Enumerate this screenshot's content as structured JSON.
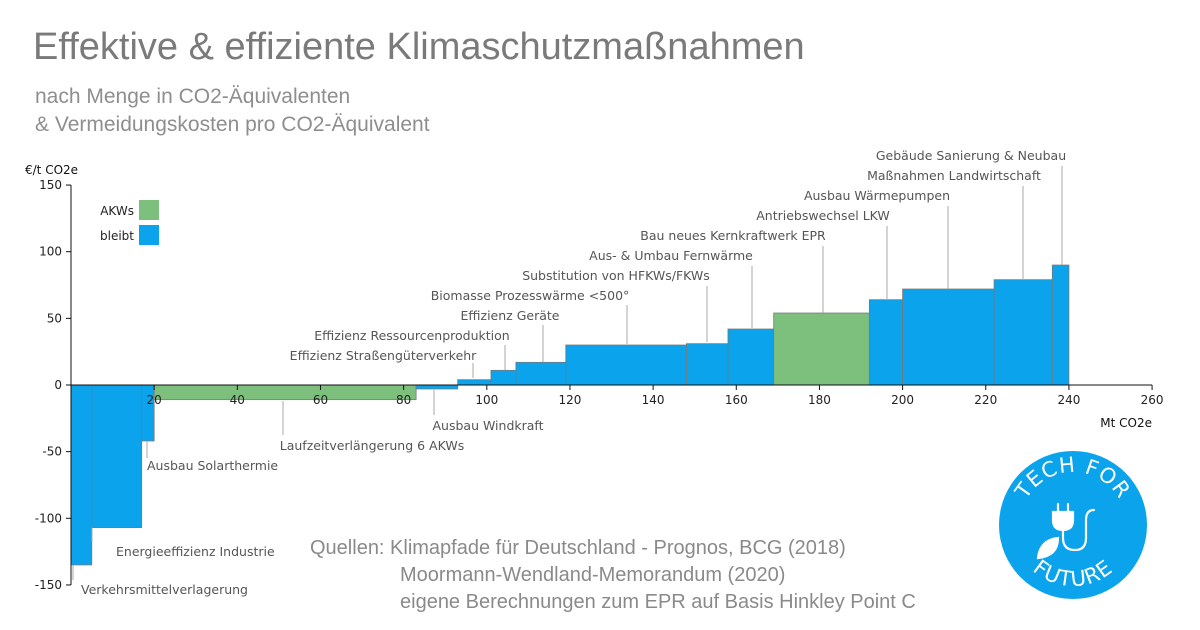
{
  "title": "Effektive & effiziente Klimaschutzmaßnahmen",
  "subtitle": [
    "nach Menge in CO2-Äquivalenten",
    "& Vermeidungskosten pro CO2-Äquivalent"
  ],
  "sources": [
    "Quellen: Klimapfade für Deutschland - Prognos, BCG (2018)",
    "Moormann-Wendland-Memorandum (2020)",
    "eigene Berechnungen zum EPR auf Basis Hinkley Point C"
  ],
  "logo": {
    "top_text": "TECH FOR",
    "bottom_text": "FUTURE",
    "icon": "plug-leaf-icon",
    "color": "#0aa3ec"
  },
  "colors": {
    "akw": "#7dc07e",
    "bleibt": "#0aa3ec",
    "bar_stroke": "#7a7a7a"
  },
  "chart_data": {
    "type": "bar",
    "variant": "marginal-abatement-cost-curve",
    "ylabel": "€/t CO2e",
    "xlabel": "Mt CO2e",
    "xlim": [
      0,
      260
    ],
    "ylim": [
      -150,
      150
    ],
    "x_ticks": [
      20,
      40,
      60,
      80,
      100,
      120,
      140,
      160,
      180,
      200,
      220,
      240,
      260
    ],
    "y_ticks": [
      -150,
      -100,
      -50,
      0,
      50,
      100,
      150
    ],
    "legend": {
      "position": "top-left",
      "entries": [
        {
          "name": "AKWs",
          "key": "akw"
        },
        {
          "name": "bleibt",
          "key": "bleibt"
        }
      ]
    },
    "bars": [
      {
        "label": "Verkehrsmittelverlagerung",
        "x0": 0,
        "x1": 5,
        "value": -135,
        "group": "bleibt"
      },
      {
        "label": "Energieeffizienz Industrie",
        "x0": 5,
        "x1": 17,
        "value": -107,
        "group": "bleibt"
      },
      {
        "label": "Ausbau Solarthermie",
        "x0": 17,
        "x1": 20,
        "value": -42,
        "group": "bleibt"
      },
      {
        "label": "Laufzeitverlängerung 6 AKWs",
        "x0": 20,
        "x1": 83,
        "value": -11,
        "group": "akw"
      },
      {
        "label": "Ausbau Windkraft",
        "x0": 83,
        "x1": 93,
        "value": -3,
        "group": "bleibt"
      },
      {
        "label": "Effizienz Straßengüterverkehr",
        "x0": 93,
        "x1": 101,
        "value": 4,
        "group": "bleibt"
      },
      {
        "label": "Effizienz Ressourcenproduktion",
        "x0": 101,
        "x1": 107,
        "value": 11,
        "group": "bleibt"
      },
      {
        "label": "Effizienz Geräte",
        "x0": 107,
        "x1": 119,
        "value": 17,
        "group": "bleibt"
      },
      {
        "label": "Biomasse Prozesswärme <500°",
        "x0": 119,
        "x1": 148,
        "value": 30,
        "group": "bleibt"
      },
      {
        "label": "Substitution von HFKWs/FKWs",
        "x0": 148,
        "x1": 158,
        "value": 31,
        "group": "bleibt"
      },
      {
        "label": "Aus- & Umbau Fernwärme",
        "x0": 158,
        "x1": 169,
        "value": 42,
        "group": "bleibt"
      },
      {
        "label": "Bau neues Kernkraftwerk EPR",
        "x0": 169,
        "x1": 192,
        "value": 54,
        "group": "akw"
      },
      {
        "label": "Antriebswechsel LKW",
        "x0": 192,
        "x1": 200,
        "value": 64,
        "group": "bleibt"
      },
      {
        "label": "Ausbau Wärmepumpen",
        "x0": 200,
        "x1": 222,
        "value": 72,
        "group": "bleibt"
      },
      {
        "label": "Maßnahmen Landwirtschaft",
        "x0": 222,
        "x1": 236,
        "value": 79,
        "group": "bleibt"
      },
      {
        "label": "Gebäude Sanierung & Neubau",
        "x0": 236,
        "x1": 240,
        "value": 90,
        "group": "bleibt"
      }
    ]
  }
}
